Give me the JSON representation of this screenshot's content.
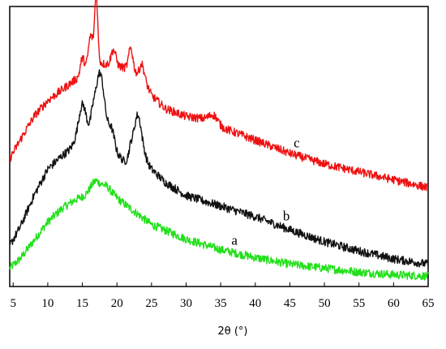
{
  "chart_data": {
    "type": "line",
    "title": "",
    "xlabel": "2θ (°)",
    "ylabel": "",
    "xlim": [
      4.5,
      65
    ],
    "ylim": [
      0,
      100
    ],
    "x_ticks": [
      "5",
      "10",
      "15",
      "20",
      "25",
      "30",
      "35",
      "40",
      "45",
      "50",
      "55",
      "60",
      "65"
    ],
    "y_ticks": [],
    "grid": false,
    "legend": "none",
    "series": [
      {
        "name": "a",
        "color": "#22e01a",
        "label_x": 37,
        "points": [
          [
            4.5,
            4.5
          ],
          [
            6,
            8
          ],
          [
            8,
            15
          ],
          [
            10,
            22
          ],
          [
            12,
            27
          ],
          [
            14,
            30.5
          ],
          [
            16,
            32.5
          ],
          [
            17,
            34
          ],
          [
            18,
            33.5
          ],
          [
            20,
            31
          ],
          [
            22,
            27
          ],
          [
            25,
            21
          ],
          [
            30,
            15.5
          ],
          [
            35,
            11.5
          ],
          [
            40,
            8.5
          ],
          [
            45,
            6
          ],
          [
            50,
            4.5
          ],
          [
            55,
            3
          ],
          [
            60,
            2
          ],
          [
            65,
            1.5
          ]
        ],
        "peaks": [
          [
            16.8,
            3.5,
            0.7
          ],
          [
            18.5,
            2.5,
            0.7
          ]
        ]
      },
      {
        "name": "b",
        "color": "#111111",
        "label_x": 44.5,
        "points": [
          [
            4.5,
            13
          ],
          [
            6,
            20
          ],
          [
            8,
            32
          ],
          [
            10,
            42
          ],
          [
            12,
            47
          ],
          [
            13,
            49
          ],
          [
            14,
            52
          ],
          [
            16,
            55
          ],
          [
            17,
            57
          ],
          [
            18,
            58
          ],
          [
            19,
            55
          ],
          [
            20,
            48
          ],
          [
            21,
            45
          ],
          [
            22,
            45
          ],
          [
            24,
            46
          ],
          [
            25,
            42
          ],
          [
            27,
            37
          ],
          [
            30,
            32
          ],
          [
            35,
            28
          ],
          [
            40,
            24
          ],
          [
            45,
            19
          ],
          [
            50,
            14.5
          ],
          [
            55,
            11
          ],
          [
            60,
            8
          ],
          [
            65,
            6
          ]
        ],
        "peaks": [
          [
            15,
            13,
            0.55
          ],
          [
            17.5,
            21,
            0.6
          ],
          [
            16.5,
            5,
            0.3
          ],
          [
            23,
            17,
            0.55
          ],
          [
            19.3,
            4,
            0.4
          ],
          [
            22,
            4,
            0.3
          ]
        ]
      },
      {
        "name": "c",
        "color": "#ee1111",
        "label_x": 46,
        "points": [
          [
            4.5,
            46
          ],
          [
            6,
            53
          ],
          [
            8,
            62
          ],
          [
            10,
            68
          ],
          [
            12,
            72
          ],
          [
            14,
            76
          ],
          [
            15,
            77
          ],
          [
            16,
            80
          ],
          [
            17,
            83
          ],
          [
            18,
            82
          ],
          [
            20,
            81
          ],
          [
            22,
            80
          ],
          [
            24,
            76
          ],
          [
            25,
            70
          ],
          [
            27,
            65
          ],
          [
            30,
            62
          ],
          [
            33,
            61
          ],
          [
            35,
            58
          ],
          [
            40,
            53
          ],
          [
            45,
            48
          ],
          [
            50,
            44
          ],
          [
            55,
            41
          ],
          [
            60,
            38
          ],
          [
            65,
            35
          ]
        ],
        "peaks": [
          [
            17,
            25,
            0.22
          ],
          [
            16.2,
            12,
            0.35
          ],
          [
            15,
            7,
            0.3
          ],
          [
            19.5,
            6,
            0.35
          ],
          [
            22,
            8,
            0.3
          ],
          [
            23.6,
            5,
            0.3
          ],
          [
            34,
            3,
            0.6
          ]
        ]
      }
    ]
  }
}
